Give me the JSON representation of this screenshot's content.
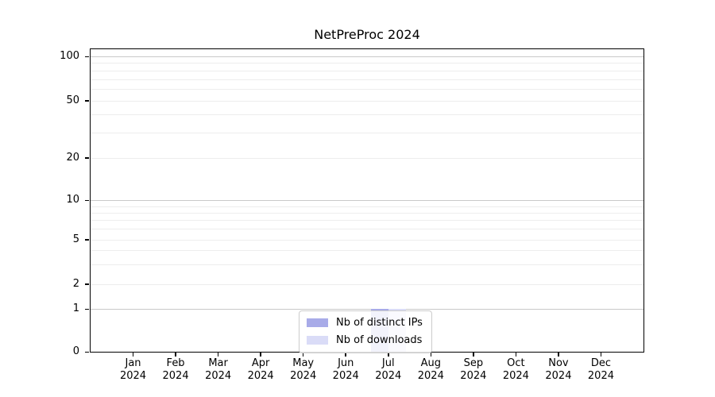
{
  "chart_data": {
    "type": "bar",
    "title": "NetPreProc 2024",
    "categories": [
      "Jan 2024",
      "Feb 2024",
      "Mar 2024",
      "Apr 2024",
      "May 2024",
      "Jun 2024",
      "Jul 2024",
      "Aug 2024",
      "Sep 2024",
      "Oct 2024",
      "Nov 2024",
      "Dec 2024"
    ],
    "x_months": [
      "Jan",
      "Feb",
      "Mar",
      "Apr",
      "May",
      "Jun",
      "Jul",
      "Aug",
      "Sep",
      "Oct",
      "Nov",
      "Dec"
    ],
    "x_year": "2024",
    "series": [
      {
        "name": "Nb of distinct IPs",
        "color": "#a8abe8",
        "values": [
          0,
          0,
          0,
          0,
          0,
          0,
          1,
          0,
          0,
          0,
          0,
          0
        ]
      },
      {
        "name": "Nb of downloads",
        "color": "#dadcf7",
        "values": [
          0,
          0,
          0,
          0,
          0,
          0,
          1,
          0,
          0,
          0,
          0,
          0
        ]
      }
    ],
    "y_ticks": [
      100,
      50,
      20,
      10,
      5,
      2,
      1,
      0
    ],
    "y_minor_gridlines": [
      90,
      80,
      70,
      60,
      40,
      30,
      9,
      8,
      7,
      6,
      4,
      3
    ],
    "ylim": [
      0,
      100
    ],
    "yscale": "log above 1, linear 0-1 (symlog-like)",
    "grid": true,
    "legend_position": "lower center",
    "colors": {
      "major_grid": "#c9c9c9",
      "minor_grid": "#ededed",
      "axis": "#000000",
      "text": "#000000",
      "background": "#ffffff"
    }
  }
}
